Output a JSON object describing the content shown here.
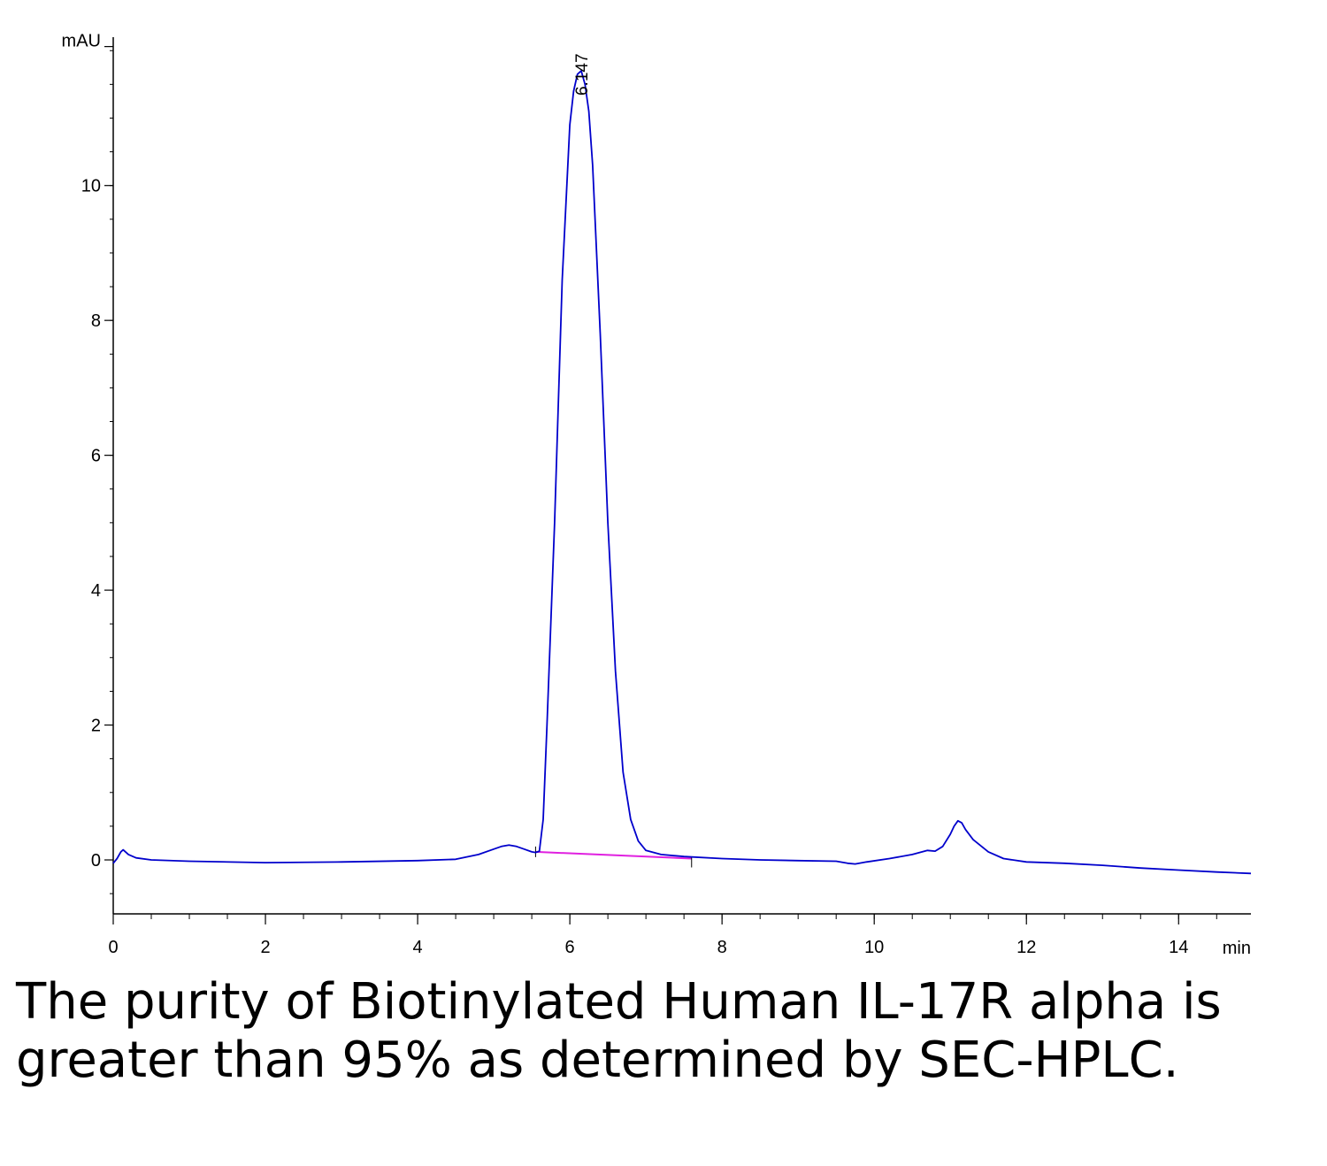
{
  "chart_data": {
    "type": "line",
    "title": "",
    "xlabel": "min",
    "ylabel": "mAU",
    "xlim": [
      0,
      14.95
    ],
    "ylim": [
      -0.8,
      12.2
    ],
    "x_ticks": [
      0,
      2,
      4,
      6,
      8,
      10,
      12,
      14
    ],
    "x_tick_labels": [
      "0",
      "2",
      "4",
      "6",
      "8",
      "10",
      "12",
      "14"
    ],
    "y_ticks": [
      0,
      2,
      4,
      6,
      8,
      10
    ],
    "y_tick_labels": [
      "0",
      "2",
      "4",
      "6",
      "8",
      "10"
    ],
    "x_minor_step": 0.5,
    "y_minor_step": 0.5,
    "grid": false,
    "series": [
      {
        "color": "#0000cc",
        "x": [
          0,
          0.05,
          0.1,
          0.13,
          0.2,
          0.3,
          0.5,
          1.0,
          2.0,
          3.0,
          4.0,
          4.5,
          4.8,
          5.0,
          5.1,
          5.2,
          5.3,
          5.4,
          5.5,
          5.55,
          5.6,
          5.65,
          5.7,
          5.8,
          5.9,
          6.0,
          6.05,
          6.1,
          6.15,
          6.2,
          6.25,
          6.3,
          6.4,
          6.5,
          6.6,
          6.7,
          6.8,
          6.9,
          7.0,
          7.2,
          7.5,
          8.0,
          8.5,
          9.0,
          9.5,
          9.65,
          9.75,
          9.9,
          10.2,
          10.5,
          10.7,
          10.8,
          10.9,
          11.0,
          11.05,
          11.1,
          11.15,
          11.2,
          11.3,
          11.5,
          11.7,
          12.0,
          12.5,
          13.0,
          13.5,
          14.0,
          14.5,
          14.95
        ],
        "y": [
          -0.05,
          0.02,
          0.12,
          0.15,
          0.08,
          0.03,
          0.0,
          -0.02,
          -0.04,
          -0.03,
          -0.01,
          0.01,
          0.08,
          0.16,
          0.2,
          0.22,
          0.2,
          0.16,
          0.12,
          0.11,
          0.13,
          0.6,
          2.0,
          5.0,
          8.6,
          10.9,
          11.4,
          11.65,
          11.7,
          11.5,
          11.1,
          10.3,
          7.8,
          5.0,
          2.8,
          1.3,
          0.6,
          0.28,
          0.14,
          0.08,
          0.05,
          0.02,
          0.0,
          -0.01,
          -0.02,
          -0.05,
          -0.06,
          -0.03,
          0.02,
          0.08,
          0.14,
          0.13,
          0.2,
          0.38,
          0.5,
          0.58,
          0.55,
          0.45,
          0.3,
          0.12,
          0.02,
          -0.03,
          -0.05,
          -0.08,
          -0.12,
          -0.15,
          -0.18,
          -0.2
        ]
      }
    ],
    "baseline": {
      "color": "#e020e0",
      "x": [
        5.55,
        7.6
      ],
      "y": [
        0.12,
        0.02
      ]
    },
    "annotations": [
      {
        "text": "6.147",
        "x": 6.147
      }
    ]
  },
  "caption": "The purity of Biotinylated Human IL-17R alpha is greater than 95% as determined by SEC-HPLC."
}
